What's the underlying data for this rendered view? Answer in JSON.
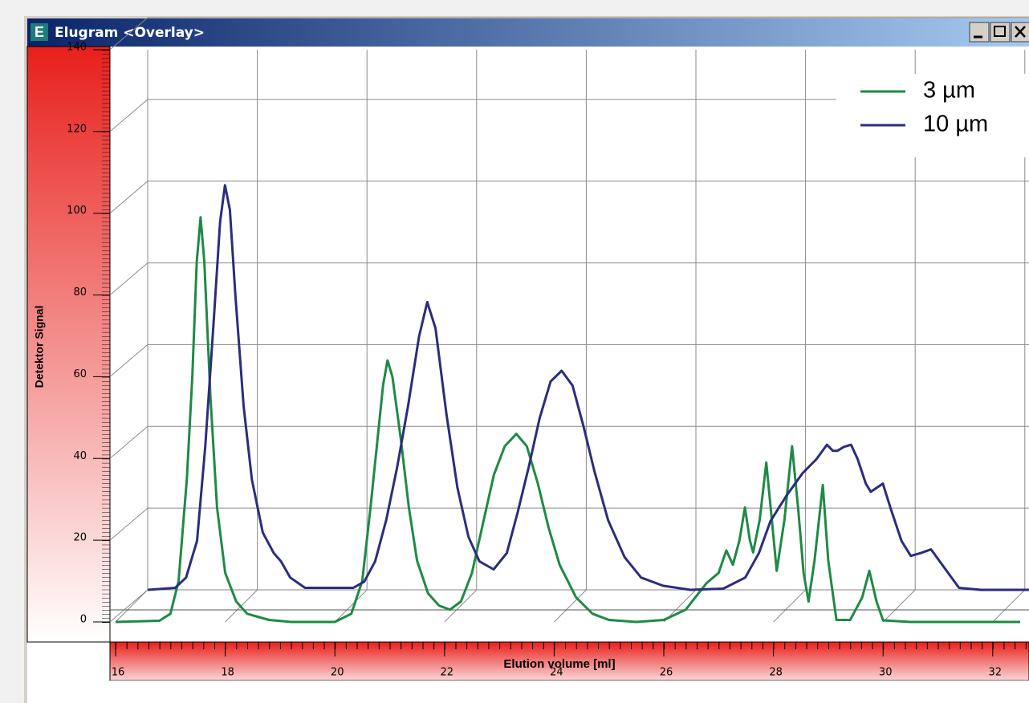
{
  "window": {
    "icon": "E",
    "title": "Elugram <Overlay>"
  },
  "chart_data": {
    "type": "line",
    "x_label": "Elution volume [ml]",
    "y_label": "Detektor Signal",
    "xlim": [
      16,
      32.5
    ],
    "xticks": [
      16,
      18,
      20,
      22,
      24,
      26,
      28,
      30,
      32
    ],
    "ylim": [
      0,
      140
    ],
    "yticks": [
      0,
      20,
      40,
      60,
      80,
      100,
      120,
      140
    ],
    "grid": true,
    "legend": "upper right",
    "series": [
      {
        "name": "3 µm",
        "color": "#1e8a45",
        "x": [
          16.0,
          16.8,
          17.0,
          17.15,
          17.3,
          17.4,
          17.48,
          17.55,
          17.62,
          17.73,
          17.85,
          18.0,
          18.2,
          18.4,
          18.8,
          19.2,
          20.0,
          20.3,
          20.5,
          20.65,
          20.78,
          20.88,
          20.96,
          21.05,
          21.2,
          21.35,
          21.5,
          21.7,
          21.9,
          22.1,
          22.3,
          22.5,
          22.7,
          22.9,
          23.1,
          23.31,
          23.5,
          23.7,
          23.9,
          24.1,
          24.4,
          24.7,
          25.0,
          25.5,
          26.0,
          26.4,
          26.78,
          27.0,
          27.14,
          27.26,
          27.38,
          27.48,
          27.57,
          27.63,
          27.75,
          27.87,
          27.97,
          28.06,
          28.2,
          28.34,
          28.45,
          28.55,
          28.64,
          28.75,
          28.9,
          29.0,
          29.15,
          29.4,
          29.62,
          29.75,
          29.88,
          30.0,
          30.5,
          32.5
        ],
        "values": [
          0,
          0.3,
          2,
          10,
          35,
          60,
          88,
          99,
          88,
          55,
          28,
          12,
          5,
          2,
          0.5,
          0,
          0,
          2,
          10,
          28,
          45,
          58,
          64,
          60,
          45,
          28,
          15,
          7,
          4,
          3,
          5,
          12,
          24,
          36,
          43,
          46,
          43,
          34,
          23,
          14,
          6,
          2,
          0.5,
          0,
          0.5,
          3,
          9.5,
          12,
          17.5,
          14,
          20,
          28,
          20,
          17,
          25,
          39,
          25,
          12.5,
          25,
          43,
          28,
          12,
          5,
          15,
          33.5,
          15,
          0.5,
          0.5,
          6,
          12.5,
          5,
          0.4,
          0,
          0
        ]
      },
      {
        "name": "10 µm",
        "color": "#2b2d7c",
        "x": [
          16.0,
          16.5,
          16.7,
          16.9,
          17.05,
          17.2,
          17.32,
          17.41,
          17.5,
          17.6,
          17.75,
          17.9,
          18.1,
          18.3,
          18.43,
          18.6,
          18.87,
          19.75,
          19.95,
          20.15,
          20.35,
          20.55,
          20.75,
          20.95,
          21.1,
          21.25,
          21.45,
          21.65,
          21.85,
          22.05,
          22.31,
          22.55,
          22.75,
          22.95,
          23.15,
          23.35,
          23.55,
          23.75,
          23.95,
          24.15,
          24.4,
          24.7,
          25.0,
          25.4,
          25.9,
          26.5,
          26.9,
          27.15,
          27.36,
          27.65,
          27.95,
          28.2,
          28.39,
          28.5,
          28.58,
          28.7,
          28.83,
          28.95,
          29.1,
          29.19,
          29.3,
          29.41,
          29.55,
          29.75,
          29.92,
          30.1,
          30.29,
          30.5,
          30.8,
          31.2,
          32.5
        ],
        "values": [
          0,
          0.5,
          3,
          12,
          35,
          65,
          90,
          99,
          93,
          72,
          45,
          27,
          14,
          9,
          7,
          3,
          0.5,
          0.5,
          2,
          7,
          17,
          30,
          45,
          62,
          70.4,
          64,
          43,
          25,
          13,
          7,
          5,
          9,
          19,
          30,
          42,
          51,
          53.6,
          50,
          40,
          29,
          17,
          8,
          3,
          1,
          0,
          0.3,
          3,
          9,
          16.8,
          23,
          28.6,
          32,
          35.5,
          34,
          34,
          35,
          35.5,
          32,
          26,
          24,
          25,
          26,
          20,
          12,
          8.3,
          9,
          9.9,
          6,
          0.5,
          0,
          0
        ]
      }
    ]
  }
}
